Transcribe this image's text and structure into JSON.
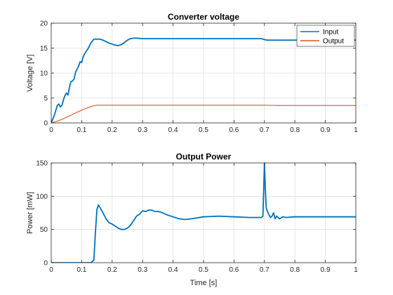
{
  "chart_data": [
    {
      "type": "line",
      "title": "Converter voltage",
      "xlabel": "",
      "ylabel": "Voltage [V]",
      "xlim": [
        0,
        1
      ],
      "ylim": [
        0,
        20
      ],
      "xticks": [
        0,
        0.1,
        0.2,
        0.3,
        0.4,
        0.5,
        0.6,
        0.7,
        0.8,
        0.9,
        1
      ],
      "xtick_labels": [
        "0",
        "0.1",
        "0.2",
        "0.3",
        "0.4",
        "0.5",
        "0.6",
        "0.7",
        "0.8",
        "0.9",
        "1"
      ],
      "yticks": [
        0,
        5,
        10,
        15,
        20
      ],
      "ytick_labels": [
        "0",
        "5",
        "10",
        "15",
        "20"
      ],
      "grid": true,
      "legend_position": "top-right",
      "series": [
        {
          "name": "Input",
          "color": "#0072BD",
          "x": [
            0,
            0.01,
            0.02,
            0.025,
            0.03,
            0.035,
            0.04,
            0.045,
            0.05,
            0.055,
            0.06,
            0.065,
            0.07,
            0.075,
            0.08,
            0.085,
            0.09,
            0.095,
            0.1,
            0.105,
            0.11,
            0.115,
            0.12,
            0.125,
            0.13,
            0.135,
            0.14,
            0.15,
            0.16,
            0.17,
            0.18,
            0.19,
            0.2,
            0.21,
            0.22,
            0.23,
            0.24,
            0.25,
            0.26,
            0.27,
            0.28,
            0.3,
            0.35,
            0.4,
            0.45,
            0.5,
            0.55,
            0.6,
            0.65,
            0.69,
            0.7,
            0.71,
            0.75,
            0.8,
            0.85,
            0.9,
            0.95,
            1.0
          ],
          "y": [
            0,
            1.5,
            3.5,
            3.8,
            3.2,
            3.5,
            4.6,
            5.5,
            6.0,
            5.6,
            7.2,
            8.3,
            8.4,
            8.8,
            10.2,
            10.8,
            11.4,
            12.3,
            12.1,
            13.3,
            13.9,
            14.4,
            14.8,
            15.4,
            16.0,
            16.4,
            16.8,
            16.8,
            16.8,
            16.6,
            16.3,
            16.0,
            15.8,
            15.6,
            15.5,
            15.7,
            16.1,
            16.6,
            16.9,
            17.0,
            17.0,
            16.9,
            16.9,
            16.9,
            16.9,
            16.9,
            16.9,
            16.9,
            16.9,
            16.9,
            16.7,
            16.6,
            16.6,
            16.6,
            16.6,
            16.6,
            16.6,
            16.6
          ]
        },
        {
          "name": "Output",
          "color": "#D95319",
          "x": [
            0,
            0.02,
            0.04,
            0.06,
            0.08,
            0.1,
            0.12,
            0.14,
            0.15,
            0.2,
            0.3,
            0.4,
            0.5,
            0.6,
            0.7,
            0.75,
            0.8,
            0.9,
            1.0
          ],
          "y": [
            0,
            0.35,
            0.85,
            1.4,
            2.0,
            2.55,
            3.05,
            3.45,
            3.55,
            3.55,
            3.55,
            3.55,
            3.55,
            3.55,
            3.55,
            3.5,
            3.5,
            3.5,
            3.5
          ]
        }
      ]
    },
    {
      "type": "line",
      "title": "Output Power",
      "xlabel": "Time [s]",
      "ylabel": "Power [mW]",
      "xlim": [
        0,
        1
      ],
      "ylim": [
        0,
        150
      ],
      "xticks": [
        0,
        0.1,
        0.2,
        0.3,
        0.4,
        0.5,
        0.6,
        0.7,
        0.8,
        0.9,
        1
      ],
      "xtick_labels": [
        "0",
        "0.1",
        "0.2",
        "0.3",
        "0.4",
        "0.5",
        "0.6",
        "0.7",
        "0.8",
        "0.9",
        "1"
      ],
      "yticks": [
        0,
        50,
        100,
        150
      ],
      "ytick_labels": [
        "0",
        "50",
        "100",
        "150"
      ],
      "grid": true,
      "series": [
        {
          "color": "#0072BD",
          "x": [
            0,
            0.13,
            0.14,
            0.145,
            0.15,
            0.155,
            0.16,
            0.17,
            0.18,
            0.19,
            0.2,
            0.21,
            0.22,
            0.23,
            0.24,
            0.25,
            0.26,
            0.27,
            0.28,
            0.29,
            0.3,
            0.31,
            0.32,
            0.33,
            0.34,
            0.35,
            0.36,
            0.38,
            0.4,
            0.42,
            0.44,
            0.46,
            0.5,
            0.55,
            0.6,
            0.65,
            0.69,
            0.695,
            0.7,
            0.703,
            0.706,
            0.71,
            0.715,
            0.72,
            0.725,
            0.73,
            0.735,
            0.74,
            0.75,
            0.76,
            0.77,
            0.8,
            0.9,
            1.0
          ],
          "y": [
            0,
            0,
            4,
            45,
            80,
            87,
            83,
            75,
            66,
            60,
            58,
            55,
            52,
            50,
            50,
            52,
            56,
            63,
            70,
            73,
            78,
            77,
            79,
            79,
            77,
            77,
            76,
            72,
            69,
            66,
            65,
            66,
            69,
            70,
            69,
            68,
            68,
            70,
            150,
            110,
            82,
            77,
            72,
            68,
            70,
            75,
            66,
            70,
            66,
            69,
            68,
            69,
            69,
            69
          ]
        }
      ]
    }
  ]
}
